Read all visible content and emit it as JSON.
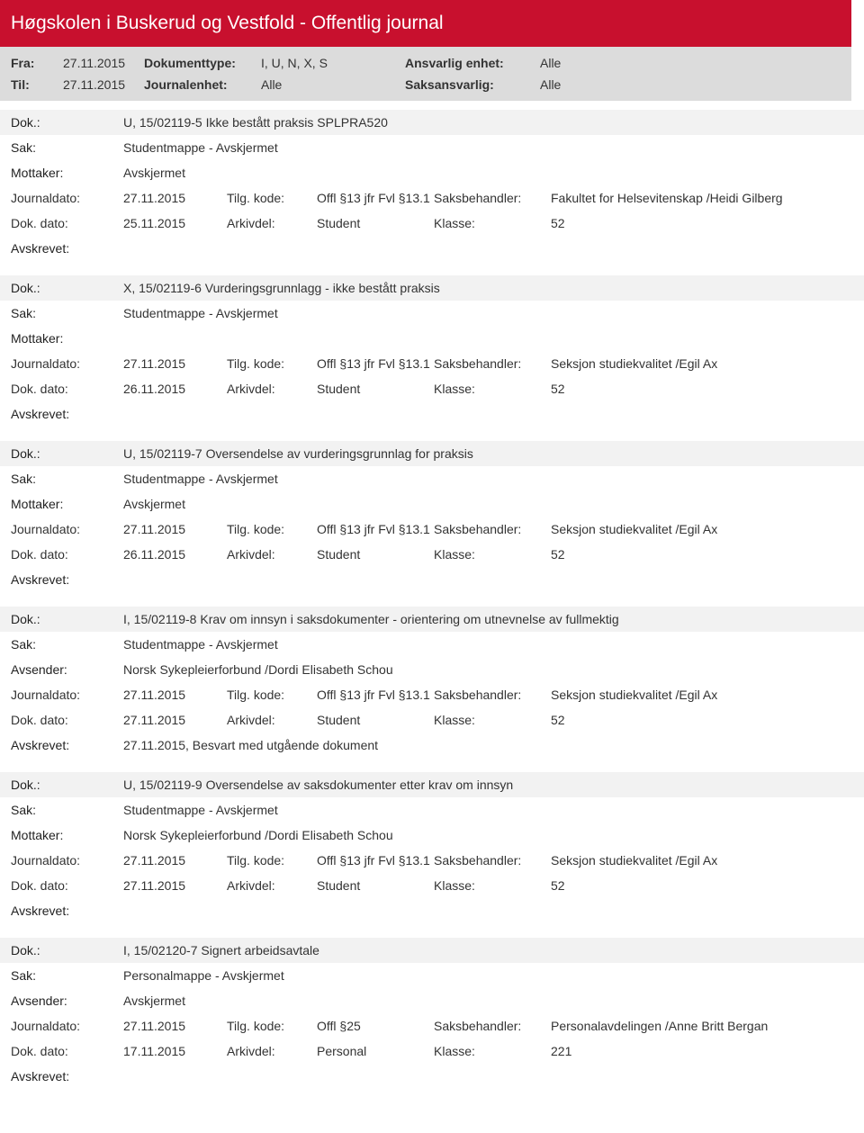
{
  "header": {
    "title": "Høgskolen i Buskerud og Vestfold - Offentlig journal",
    "fra_lbl": "Fra:",
    "fra_val": "27.11.2015",
    "til_lbl": "Til:",
    "til_val": "27.11.2015",
    "doktype_lbl": "Dokumenttype:",
    "doktype_val": "I, U, N, X, S",
    "journalenhet_lbl": "Journalenhet:",
    "journalenhet_val": "Alle",
    "ansvarlig_lbl": "Ansvarlig enhet:",
    "ansvarlig_val": "Alle",
    "saksansvarlig_lbl": "Saksansvarlig:",
    "saksansvarlig_val": "Alle"
  },
  "labels": {
    "dok": "Dok.:",
    "sak": "Sak:",
    "mottaker": "Mottaker:",
    "avsender": "Avsender:",
    "journaldato": "Journaldato:",
    "tilgkode": "Tilg. kode:",
    "saksbehandler": "Saksbehandler:",
    "dokdato": "Dok. dato:",
    "arkivdel": "Arkivdel:",
    "klasse": "Klasse:",
    "avskrevet": "Avskrevet:"
  },
  "entries": [
    {
      "dok": "U, 15/02119-5 Ikke bestått praksis SPLPRA520",
      "sak": "Studentmappe - Avskjermet",
      "party_lbl": "Mottaker:",
      "party": "Avskjermet",
      "journaldato": "27.11.2015",
      "tilgkode": "Offl §13 jfr Fvl §13.1",
      "saksbehandler": "Fakultet for Helsevitenskap /Heidi Gilberg",
      "dokdato": "25.11.2015",
      "arkivdel": "Student",
      "klasse": "52",
      "avskrevet": ""
    },
    {
      "dok": "X, 15/02119-6 Vurderingsgrunnlagg - ikke bestått praksis",
      "sak": "Studentmappe - Avskjermet",
      "party_lbl": "Mottaker:",
      "party": "",
      "journaldato": "27.11.2015",
      "tilgkode": "Offl §13 jfr Fvl §13.1",
      "saksbehandler": "Seksjon studiekvalitet /Egil Ax",
      "dokdato": "26.11.2015",
      "arkivdel": "Student",
      "klasse": "52",
      "avskrevet": ""
    },
    {
      "dok": "U, 15/02119-7 Oversendelse av vurderingsgrunnlag for praksis",
      "sak": "Studentmappe - Avskjermet",
      "party_lbl": "Mottaker:",
      "party": "Avskjermet",
      "journaldato": "27.11.2015",
      "tilgkode": "Offl §13 jfr Fvl §13.1",
      "saksbehandler": "Seksjon studiekvalitet /Egil Ax",
      "dokdato": "26.11.2015",
      "arkivdel": "Student",
      "klasse": "52",
      "avskrevet": ""
    },
    {
      "dok": "I, 15/02119-8 Krav om innsyn i saksdokumenter - orientering om utnevnelse av fullmektig",
      "sak": "Studentmappe - Avskjermet",
      "party_lbl": "Avsender:",
      "party": "Norsk Sykepleierforbund /Dordi Elisabeth Schou",
      "journaldato": "27.11.2015",
      "tilgkode": "Offl §13 jfr Fvl §13.1",
      "saksbehandler": "Seksjon studiekvalitet /Egil Ax",
      "dokdato": "27.11.2015",
      "arkivdel": "Student",
      "klasse": "52",
      "avskrevet": "27.11.2015, Besvart med utgående dokument"
    },
    {
      "dok": "U, 15/02119-9 Oversendelse av saksdokumenter etter krav om innsyn",
      "sak": "Studentmappe - Avskjermet",
      "party_lbl": "Mottaker:",
      "party": "Norsk Sykepleierforbund /Dordi Elisabeth Schou",
      "journaldato": "27.11.2015",
      "tilgkode": "Offl §13 jfr Fvl §13.1",
      "saksbehandler": "Seksjon studiekvalitet /Egil Ax",
      "dokdato": "27.11.2015",
      "arkivdel": "Student",
      "klasse": "52",
      "avskrevet": ""
    },
    {
      "dok": "I, 15/02120-7 Signert arbeidsavtale",
      "sak": "Personalmappe - Avskjermet",
      "party_lbl": "Avsender:",
      "party": "Avskjermet",
      "journaldato": "27.11.2015",
      "tilgkode": "Offl §25",
      "saksbehandler": "Personalavdelingen /Anne Britt Bergan",
      "dokdato": "17.11.2015",
      "arkivdel": "Personal",
      "klasse": "221",
      "avskrevet": ""
    }
  ]
}
